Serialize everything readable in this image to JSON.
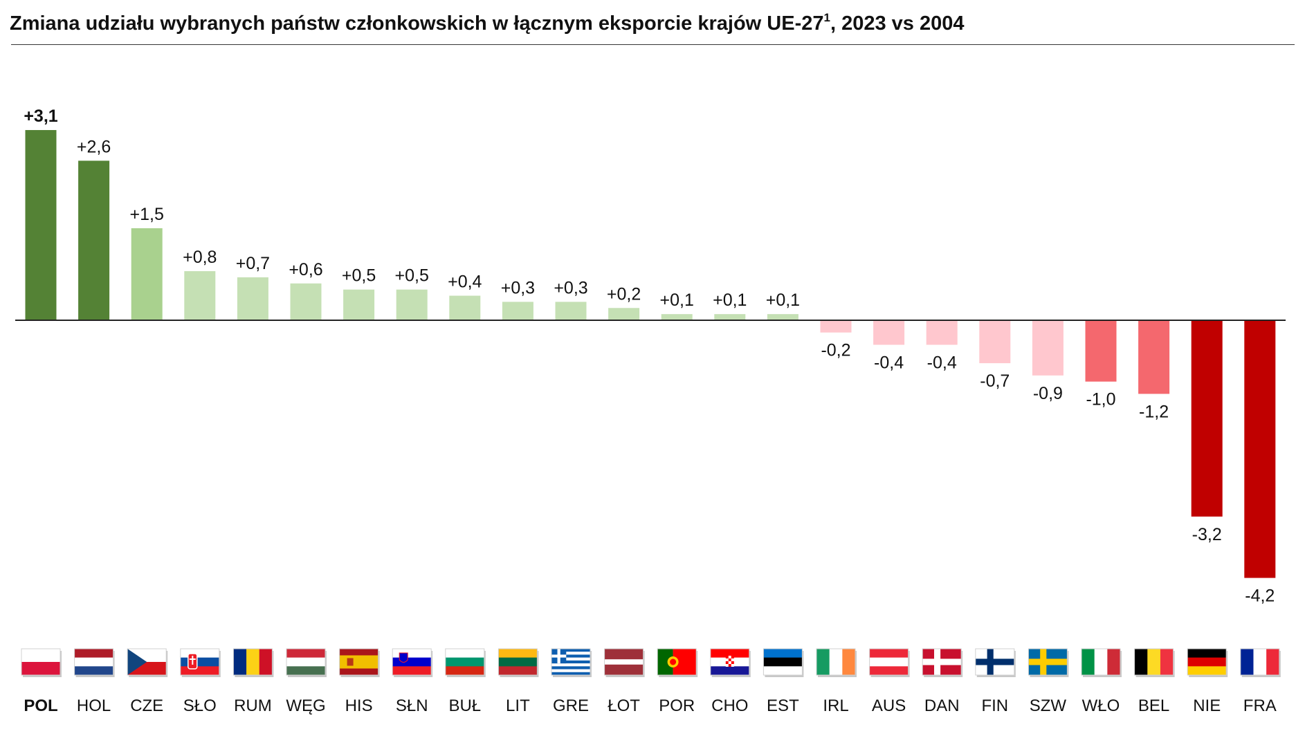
{
  "title": {
    "text": "Zmiana udziału wybranych państw członkowskich w łącznym eksporcie krajów UE-27",
    "superscript": "1",
    "suffix": ", 2023 vs 2004"
  },
  "colors": {
    "dark_green": "#548235",
    "mid_green": "#A9D18E",
    "light_green": "#C5E0B4",
    "light_pink": "#FFC7CE",
    "mid_red": "#F4686E",
    "dark_red": "#C00000",
    "highlight_label": "#548235"
  },
  "chart_data": {
    "type": "bar",
    "title": "Zmiana udziału wybranych państw członkowskich w łącznym eksporcie krajów UE-27¹, 2023 vs 2004",
    "xlabel": "",
    "ylabel": "",
    "ylim": [
      -4.2,
      3.1
    ],
    "grid": false,
    "legend": "none",
    "categories": [
      "POL",
      "HOL",
      "CZE",
      "SŁO",
      "RUM",
      "WĘG",
      "HIS",
      "SŁN",
      "BUŁ",
      "LIT",
      "GRE",
      "ŁOT",
      "POR",
      "CHO",
      "EST",
      "IRL",
      "AUS",
      "DAN",
      "FIN",
      "SZW",
      "WŁO",
      "BEL",
      "NIE",
      "FRA"
    ],
    "values": [
      3.1,
      2.6,
      1.5,
      0.8,
      0.7,
      0.6,
      0.5,
      0.5,
      0.4,
      0.3,
      0.3,
      0.2,
      0.1,
      0.1,
      0.1,
      -0.2,
      -0.4,
      -0.4,
      -0.7,
      -0.9,
      -1.0,
      -1.2,
      -3.2,
      -4.2
    ],
    "value_labels": [
      "+3,1",
      "+2,6",
      "+1,5",
      "+0,8",
      "+0,7",
      "+0,6",
      "+0,5",
      "+0,5",
      "+0,4",
      "+0,3",
      "+0,3",
      "+0,2",
      "+0,1",
      "+0,1",
      "+0,1",
      "-0,2",
      "-0,4",
      "-0,4",
      "-0,7",
      "-0,9",
      "-1,0",
      "-1,2",
      "-3,2",
      "-4,2"
    ],
    "bar_colors": [
      "dark_green",
      "dark_green",
      "mid_green",
      "light_green",
      "light_green",
      "light_green",
      "light_green",
      "light_green",
      "light_green",
      "light_green",
      "light_green",
      "light_green",
      "light_green",
      "light_green",
      "light_green",
      "light_pink",
      "light_pink",
      "light_pink",
      "light_pink",
      "light_pink",
      "mid_red",
      "mid_red",
      "dark_red",
      "dark_red"
    ],
    "highlighted_category": "POL",
    "flags": [
      {
        "type": "h",
        "colors": [
          "#ffffff",
          "#dc143c"
        ]
      },
      {
        "type": "h",
        "colors": [
          "#ae1c28",
          "#ffffff",
          "#21468b"
        ]
      },
      {
        "type": "cze"
      },
      {
        "type": "h",
        "colors": [
          "#ffffff",
          "#0b4ea2",
          "#ee1c25"
        ],
        "emblem": "slovakia"
      },
      {
        "type": "v",
        "colors": [
          "#002b7f",
          "#fcd116",
          "#ce1126"
        ]
      },
      {
        "type": "h",
        "colors": [
          "#ce2939",
          "#ffffff",
          "#477050"
        ]
      },
      {
        "type": "spain"
      },
      {
        "type": "h",
        "colors": [
          "#ffffff",
          "#0000cc",
          "#ee1c25"
        ],
        "emblem": "slovenia"
      },
      {
        "type": "h",
        "colors": [
          "#ffffff",
          "#00966e",
          "#d62612"
        ]
      },
      {
        "type": "h",
        "colors": [
          "#fdb913",
          "#006a44",
          "#c1272d"
        ]
      },
      {
        "type": "greece"
      },
      {
        "type": "latvia"
      },
      {
        "type": "portugal"
      },
      {
        "type": "h",
        "colors": [
          "#ff0000",
          "#ffffff",
          "#171796"
        ],
        "emblem": "croatia"
      },
      {
        "type": "h",
        "colors": [
          "#0072ce",
          "#000000",
          "#ffffff"
        ]
      },
      {
        "type": "v",
        "colors": [
          "#169b62",
          "#ffffff",
          "#ff883e"
        ]
      },
      {
        "type": "h",
        "colors": [
          "#ed2939",
          "#ffffff",
          "#ed2939"
        ]
      },
      {
        "type": "nordic",
        "bg": "#c8102e",
        "cross": "#ffffff"
      },
      {
        "type": "nordic",
        "bg": "#ffffff",
        "cross": "#002f6c"
      },
      {
        "type": "nordic",
        "bg": "#006aa7",
        "cross": "#fecc00"
      },
      {
        "type": "v",
        "colors": [
          "#009246",
          "#ffffff",
          "#ce2b37"
        ]
      },
      {
        "type": "v",
        "colors": [
          "#000000",
          "#fdda24",
          "#ef3340"
        ]
      },
      {
        "type": "h",
        "colors": [
          "#000000",
          "#dd0000",
          "#ffce00"
        ]
      },
      {
        "type": "v",
        "colors": [
          "#002395",
          "#ffffff",
          "#ed2939"
        ]
      }
    ]
  }
}
